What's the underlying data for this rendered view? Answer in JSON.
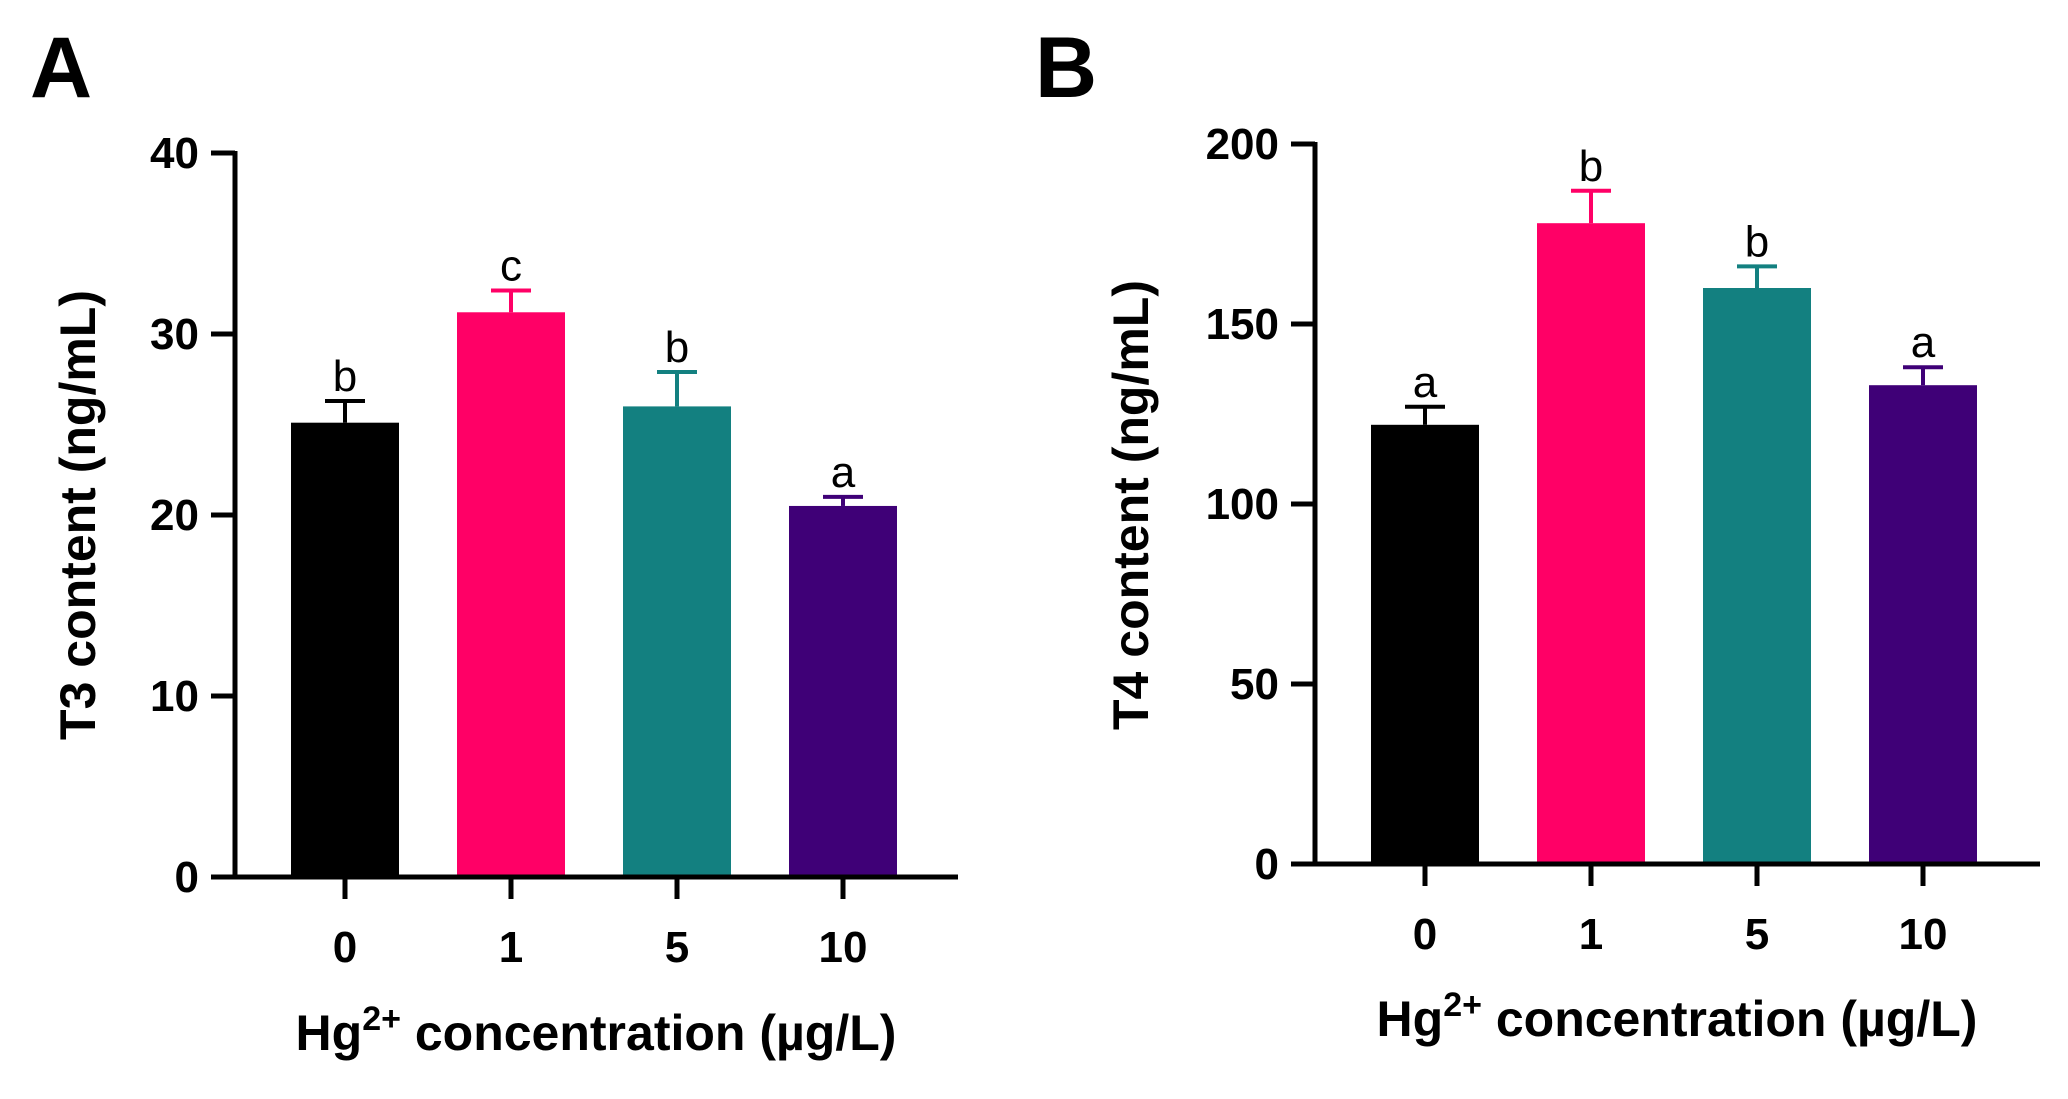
{
  "chart_data": [
    {
      "type": "bar",
      "panel_label": "A",
      "categories": [
        "0",
        "1",
        "5",
        "10"
      ],
      "values": [
        25.1,
        31.2,
        26.0,
        20.5
      ],
      "errors": [
        1.2,
        1.2,
        1.9,
        0.5
      ],
      "significance": [
        "b",
        "c",
        "b",
        "a"
      ],
      "colors": [
        "#000000",
        "#FF0066",
        "#138080",
        "#3F0077"
      ],
      "ylabel": "T3 content (ng/mL)",
      "xlabel_main": "Hg",
      "xlabel_sup": "2+",
      "xlabel_rest": " concentration (µg/L)",
      "ylim": [
        0,
        40
      ],
      "yticks": [
        0,
        10,
        20,
        30,
        40
      ],
      "ytick_labels": [
        "0",
        "10",
        "20",
        "30",
        "40"
      ]
    },
    {
      "type": "bar",
      "panel_label": "B",
      "categories": [
        "0",
        "1",
        "5",
        "10"
      ],
      "values": [
        122,
        178,
        160,
        133
      ],
      "errors": [
        5,
        9,
        6,
        5
      ],
      "significance": [
        "a",
        "b",
        "b",
        "a"
      ],
      "colors": [
        "#000000",
        "#FF0066",
        "#138080",
        "#3F0077"
      ],
      "ylabel": "T4 content (ng/mL)",
      "xlabel_main": "Hg",
      "xlabel_sup": "2+",
      "xlabel_rest": " concentration (µg/L)",
      "ylim": [
        0,
        200
      ],
      "yticks": [
        0,
        50,
        100,
        150,
        200
      ],
      "ytick_labels": [
        "0",
        "50",
        "100",
        "150",
        "200"
      ]
    }
  ]
}
